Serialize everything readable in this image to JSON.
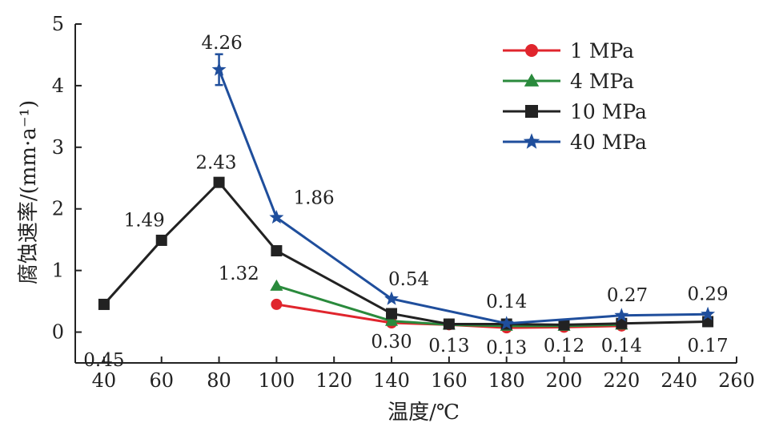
{
  "chart_data": {
    "type": "line",
    "xlabel": "温度/℃",
    "ylabel": "腐蚀速率/(mm·a⁻¹)",
    "xlim": [
      30,
      260
    ],
    "ylim": [
      -0.5,
      5
    ],
    "xticks": [
      40,
      60,
      80,
      100,
      120,
      140,
      160,
      180,
      200,
      220,
      240,
      260
    ],
    "yticks": [
      0,
      1,
      2,
      3,
      4,
      5
    ],
    "grid": false,
    "legend_position": "top-right",
    "series": [
      {
        "name": "1 MPa",
        "color": "#e0252d",
        "marker": "circle",
        "points": [
          [
            100,
            0.45
          ],
          [
            140,
            0.15
          ],
          [
            160,
            0.12
          ],
          [
            180,
            0.07
          ],
          [
            200,
            0.08
          ],
          [
            220,
            0.1
          ]
        ]
      },
      {
        "name": "4 MPa",
        "color": "#2a8a3c",
        "marker": "triangle",
        "points": [
          [
            100,
            0.75
          ],
          [
            140,
            0.18
          ],
          [
            160,
            0.12
          ],
          [
            180,
            0.1
          ],
          [
            200,
            0.1
          ],
          [
            220,
            0.12
          ]
        ]
      },
      {
        "name": "10 MPa",
        "color": "#222222",
        "marker": "square",
        "points": [
          [
            40,
            0.45
          ],
          [
            60,
            1.49
          ],
          [
            80,
            2.43
          ],
          [
            100,
            1.32
          ],
          [
            140,
            0.3
          ],
          [
            160,
            0.13
          ],
          [
            180,
            0.13
          ],
          [
            200,
            0.12
          ],
          [
            220,
            0.14
          ],
          [
            250,
            0.17
          ]
        ]
      },
      {
        "name": "40 MPa",
        "color": "#1f4e9c",
        "marker": "star",
        "points": [
          [
            80,
            4.26
          ],
          [
            100,
            1.86
          ],
          [
            140,
            0.54
          ],
          [
            180,
            0.14
          ],
          [
            220,
            0.27
          ],
          [
            250,
            0.29
          ]
        ],
        "error": [
          [
            80,
            0.25
          ]
        ]
      }
    ],
    "annotations": [
      {
        "text": "0.45",
        "x": 40,
        "y": -0.55,
        "anchor": "middle"
      },
      {
        "text": "1.49",
        "x": 54,
        "y": 1.72,
        "anchor": "middle"
      },
      {
        "text": "2.43",
        "x": 79,
        "y": 2.65,
        "anchor": "middle"
      },
      {
        "text": "4.26",
        "x": 81,
        "y": 4.6,
        "anchor": "middle"
      },
      {
        "text": "1.86",
        "x": 113,
        "y": 2.08,
        "anchor": "middle"
      },
      {
        "text": "1.32",
        "x": 94,
        "y": 0.85,
        "anchor": "end"
      },
      {
        "text": "0.54",
        "x": 146,
        "y": 0.76,
        "anchor": "middle"
      },
      {
        "text": "0.30",
        "x": 140,
        "y": -0.25,
        "anchor": "middle"
      },
      {
        "text": "0.13",
        "x": 160,
        "y": -0.32,
        "anchor": "middle"
      },
      {
        "text": "0.14",
        "x": 180,
        "y": 0.4,
        "anchor": "middle"
      },
      {
        "text": "0.13",
        "x": 180,
        "y": -0.35,
        "anchor": "middle"
      },
      {
        "text": "0.12",
        "x": 200,
        "y": -0.32,
        "anchor": "middle"
      },
      {
        "text": "0.27",
        "x": 222,
        "y": 0.5,
        "anchor": "middle"
      },
      {
        "text": "0.14",
        "x": 220,
        "y": -0.32,
        "anchor": "middle"
      },
      {
        "text": "0.29",
        "x": 250,
        "y": 0.52,
        "anchor": "middle"
      },
      {
        "text": "0.17",
        "x": 250,
        "y": -0.32,
        "anchor": "middle"
      }
    ]
  }
}
